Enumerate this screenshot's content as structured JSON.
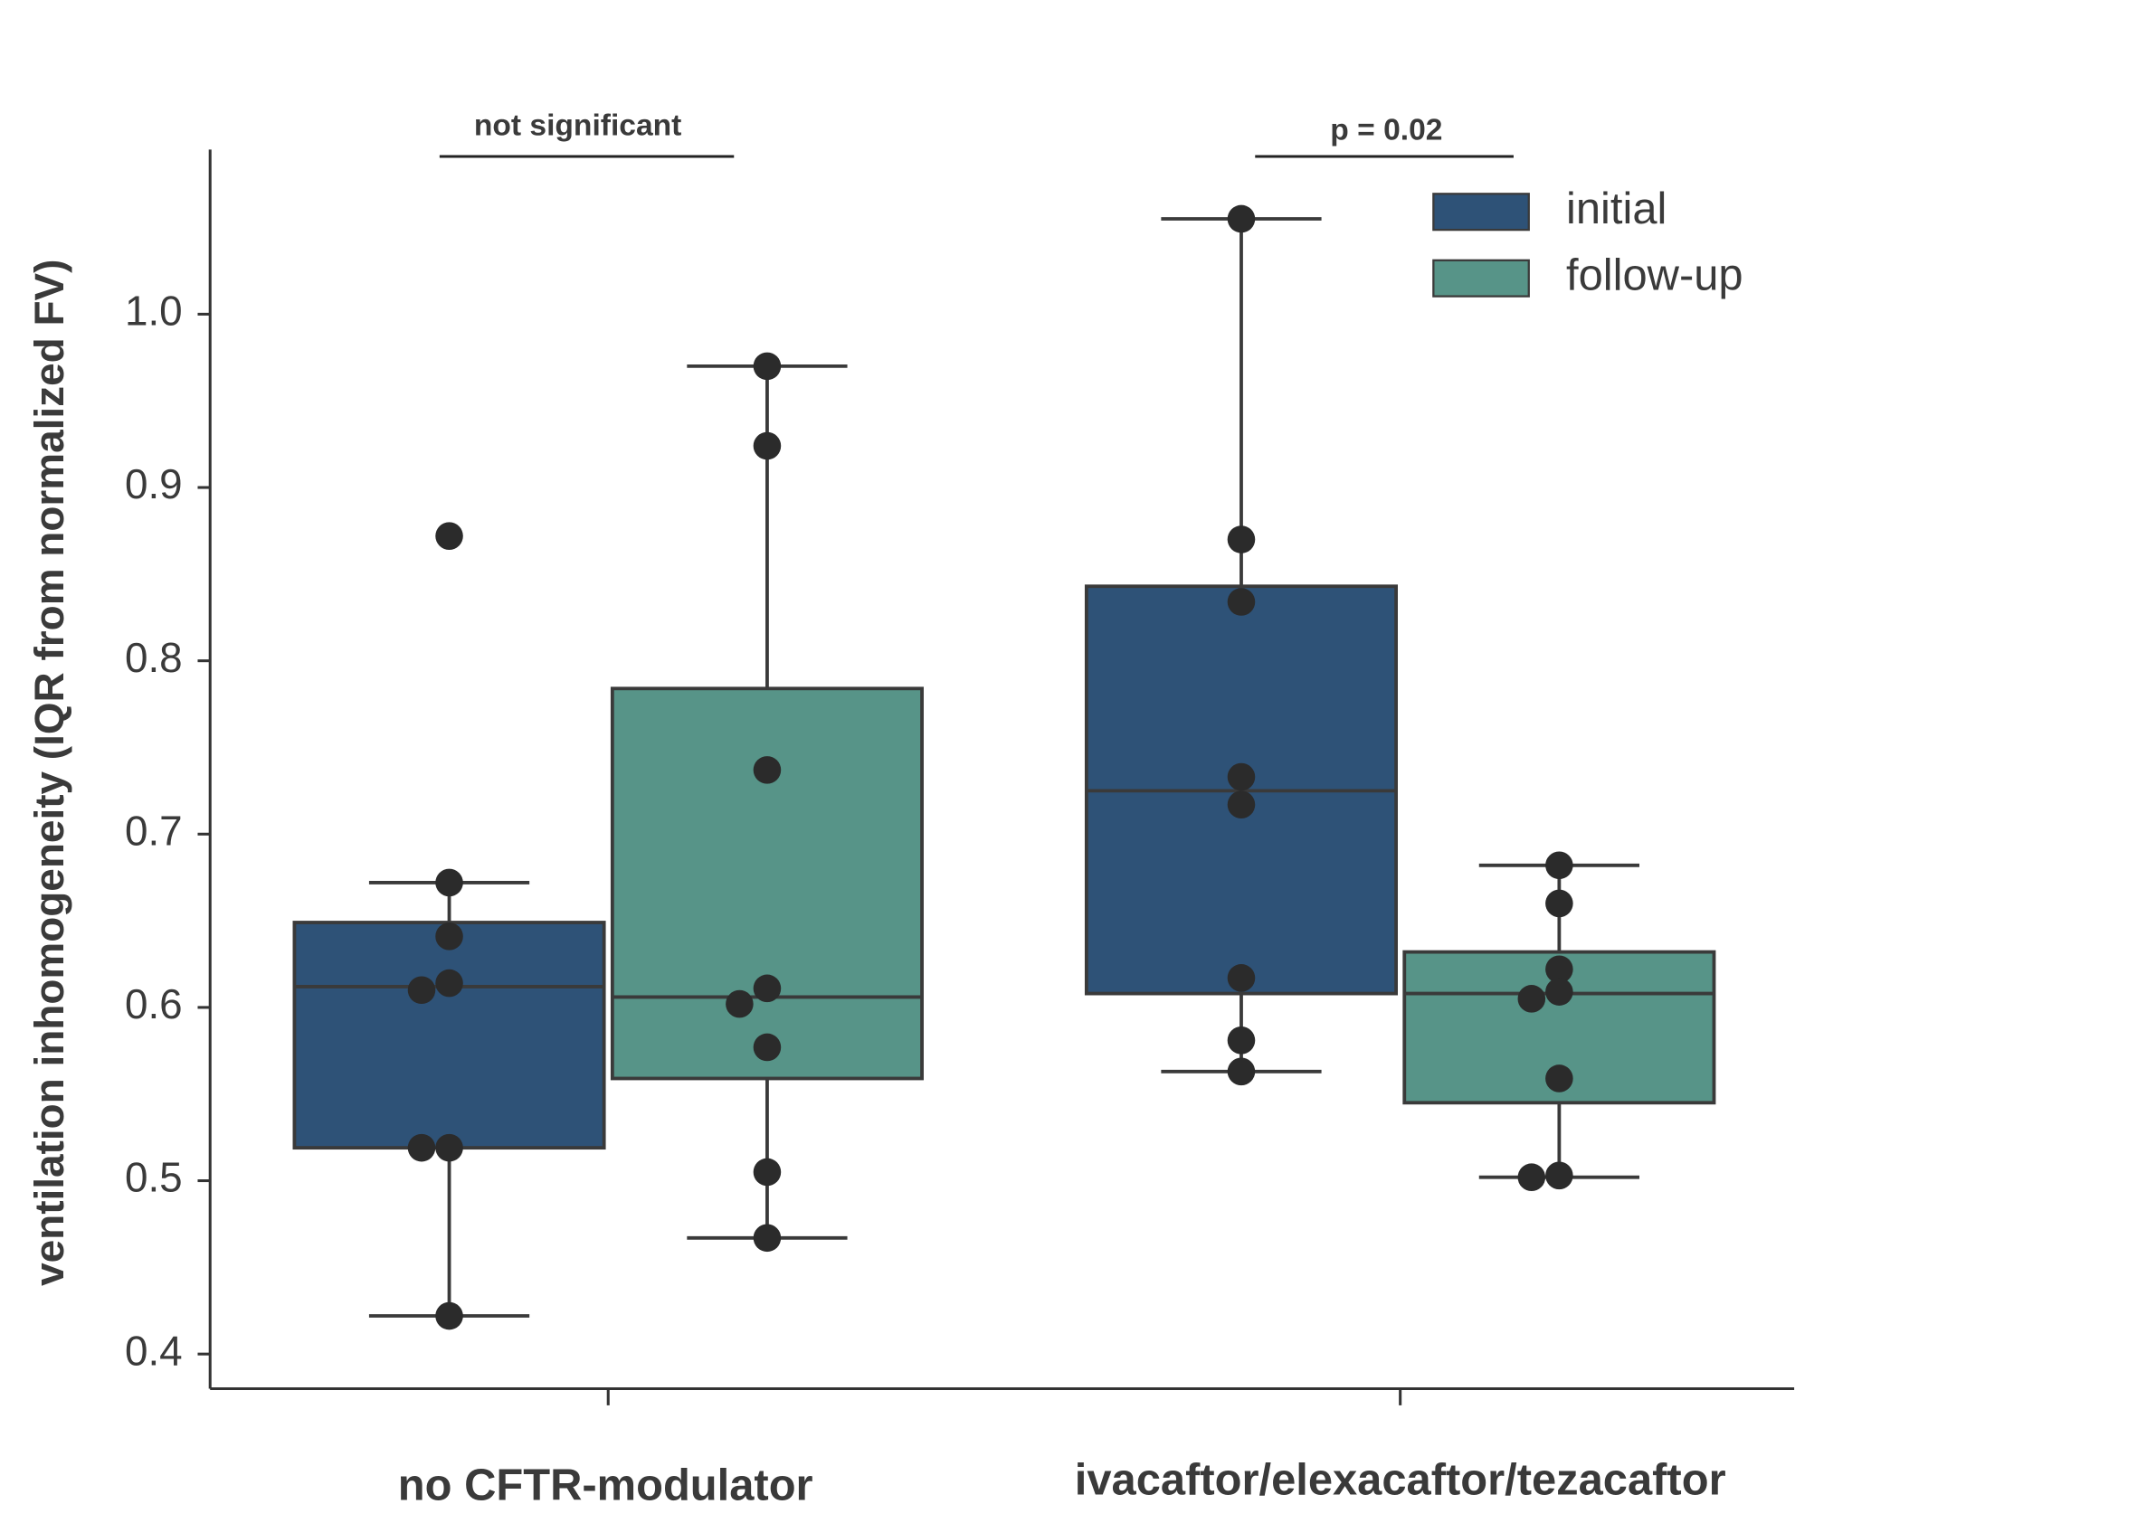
{
  "chart_data": {
    "type": "box",
    "ylabel": "ventilation inhomogeneity (IQR from normalized FV)",
    "categories": [
      "no CFTR-modulator",
      "ivacaftor/elexacaftor/tezacaftor"
    ],
    "ylim": [
      0.38,
      1.095
    ],
    "yticks": [
      0.4,
      0.5,
      0.6,
      0.7,
      0.8,
      0.9,
      {
        "value": 1,
        "label": "1.0"
      }
    ],
    "legend": "upper right",
    "annotations": [
      "not significant",
      "p = 0.02"
    ],
    "series": [
      {
        "name": "initial",
        "color": "#2e5277",
        "boxes": [
          {
            "whislo": 0.422,
            "q1": 0.519,
            "med": 0.612,
            "q3": 0.649,
            "whishi": 0.672,
            "points": [
              0.872,
              0.672,
              0.641,
              0.614,
              0.61,
              0.519,
              0.519,
              0.422
            ]
          },
          {
            "whislo": 0.563,
            "q1": 0.608,
            "med": 0.725,
            "q3": 0.843,
            "whishi": 1.055,
            "points": [
              1.055,
              0.87,
              0.834,
              0.733,
              0.717,
              0.617,
              0.581,
              0.563
            ]
          }
        ]
      },
      {
        "name": "follow-up",
        "color": "#579488",
        "boxes": [
          {
            "whislo": 0.467,
            "q1": 0.559,
            "med": 0.606,
            "q3": 0.784,
            "whishi": 0.97,
            "points": [
              0.97,
              0.924,
              0.737,
              0.611,
              0.602,
              0.577,
              0.505,
              0.467
            ]
          },
          {
            "whislo": 0.502,
            "q1": 0.545,
            "med": 0.608,
            "q3": 0.632,
            "whishi": 0.682,
            "points": [
              0.682,
              0.66,
              0.622,
              0.609,
              0.605,
              0.559,
              0.503,
              0.502
            ]
          }
        ]
      }
    ]
  }
}
